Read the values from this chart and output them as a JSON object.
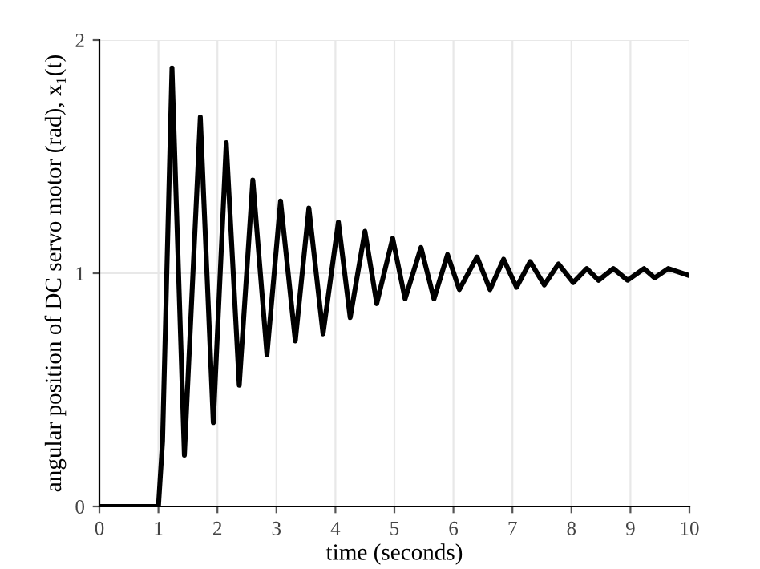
{
  "chart_data": {
    "type": "line",
    "xlabel": "time (seconds)",
    "ylabel": "angular position of DC servo motor (rad), x₁(t)",
    "x": [
      0,
      1.0,
      1.07,
      1.23,
      1.44,
      1.71,
      1.93,
      2.15,
      2.37,
      2.6,
      2.84,
      3.07,
      3.32,
      3.55,
      3.79,
      4.05,
      4.25,
      4.5,
      4.7,
      4.97,
      5.18,
      5.45,
      5.67,
      5.9,
      6.1,
      6.4,
      6.62,
      6.85,
      7.07,
      7.3,
      7.54,
      7.78,
      8.03,
      8.26,
      8.46,
      8.71,
      8.95,
      9.23,
      9.41,
      9.64,
      10
    ],
    "series": [
      {
        "color": "#000000",
        "values": [
          0,
          0,
          0.28,
          1.88,
          0.22,
          1.67,
          0.36,
          1.56,
          0.52,
          1.4,
          0.65,
          1.31,
          0.71,
          1.28,
          0.74,
          1.22,
          0.81,
          1.18,
          0.87,
          1.15,
          0.89,
          1.11,
          0.89,
          1.08,
          0.93,
          1.07,
          0.93,
          1.06,
          0.94,
          1.05,
          0.95,
          1.04,
          0.96,
          1.02,
          0.97,
          1.02,
          0.97,
          1.02,
          0.98,
          1.02,
          0.99
        ]
      }
    ],
    "xlim": [
      0,
      10
    ],
    "ylim": [
      0,
      2
    ],
    "xticks": [
      0,
      1,
      2,
      3,
      4,
      5,
      6,
      7,
      8,
      9,
      10
    ],
    "yticks": [
      0,
      1,
      2
    ],
    "grid": true,
    "line_style": "solid",
    "marker": "none"
  }
}
